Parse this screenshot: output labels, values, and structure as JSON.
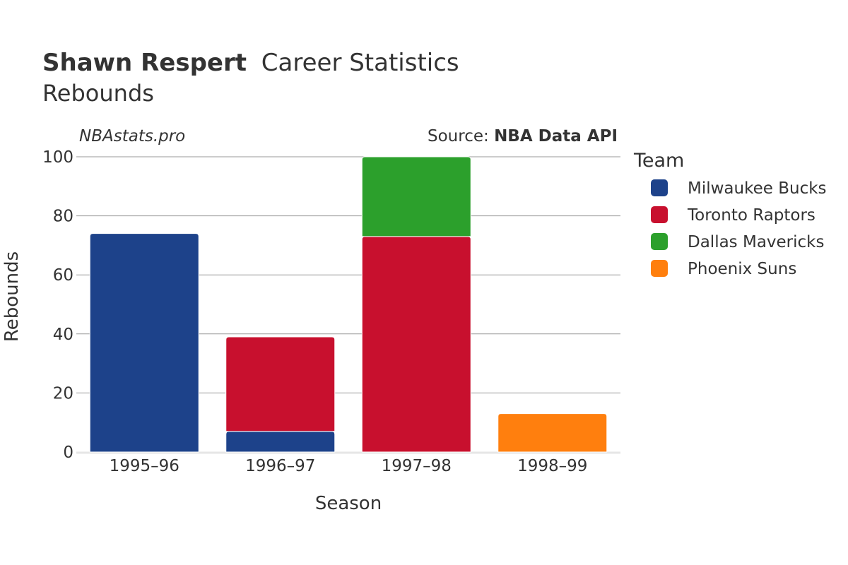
{
  "header": {
    "player_name": "Shawn Respert",
    "title_rest": "Career Statistics",
    "subtitle": "Rebounds"
  },
  "watermark": "NBAstats.pro",
  "source": {
    "label": "Source: ",
    "name": "NBA Data API"
  },
  "legend": {
    "title": "Team"
  },
  "colors": {
    "Milwaukee Bucks": "#1d428a",
    "Toronto Raptors": "#c8102e",
    "Dallas Mavericks": "#2ca02c",
    "Phoenix Suns": "#ff7f0e",
    "grid": "#999999",
    "text": "#333333"
  },
  "chart_data": {
    "type": "bar",
    "stacked": true,
    "title": "Shawn Respert Career Statistics",
    "subtitle": "Rebounds",
    "xlabel": "Season",
    "ylabel": "Rebounds",
    "categories": [
      "1995–96",
      "1996–97",
      "1997–98",
      "1998–99"
    ],
    "ylim": [
      0,
      100
    ],
    "yticks": [
      0,
      20,
      40,
      60,
      80,
      100
    ],
    "series": [
      {
        "name": "Milwaukee Bucks",
        "values": [
          74,
          7,
          0,
          0
        ]
      },
      {
        "name": "Toronto Raptors",
        "values": [
          0,
          32,
          73,
          0
        ]
      },
      {
        "name": "Dallas Mavericks",
        "values": [
          0,
          0,
          27,
          0
        ]
      },
      {
        "name": "Phoenix Suns",
        "values": [
          0,
          0,
          0,
          13
        ]
      }
    ]
  }
}
